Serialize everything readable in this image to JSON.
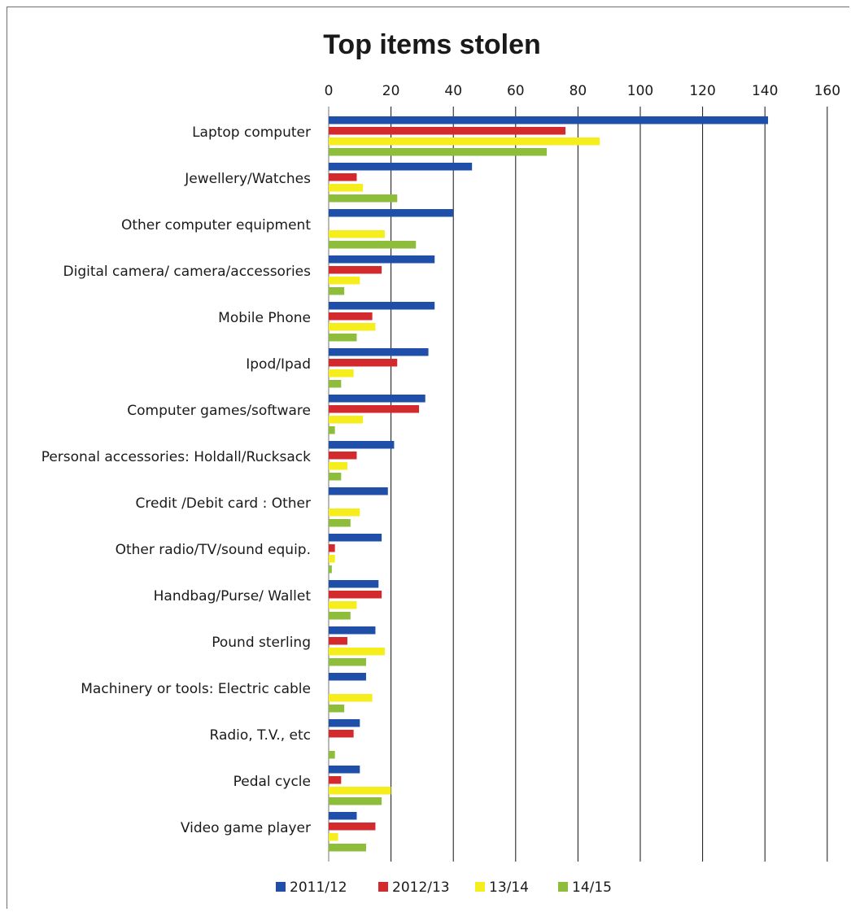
{
  "chart_data": {
    "type": "bar",
    "orientation": "horizontal",
    "title": "Top items stolen",
    "xlim": [
      0,
      160
    ],
    "xticks": [
      "0",
      "20",
      "40",
      "60",
      "80",
      "100",
      "120",
      "140",
      "160"
    ],
    "axis_position": "top",
    "grid": "vertical",
    "legend_position": "bottom",
    "categories": [
      "Laptop computer",
      "Jewellery/Watches",
      "Other computer equipment",
      "Digital camera/ camera/accessories",
      "Mobile Phone",
      "Ipod/Ipad",
      "Computer games/software",
      "Personal accessories: Holdall/Rucksack",
      "Credit /Debit card : Other",
      "Other radio/TV/sound equip.",
      "Handbag/Purse/ Wallet",
      "Pound sterling",
      "Machinery or tools: Electric cable",
      "Radio, T.V., etc",
      "Pedal cycle",
      "Video game player"
    ],
    "series": [
      {
        "name": "2011/12",
        "color": "#1f4fa8",
        "values": [
          141,
          46,
          40,
          34,
          34,
          32,
          31,
          21,
          19,
          17,
          16,
          15,
          12,
          10,
          10,
          9
        ]
      },
      {
        "name": "2012/13",
        "color": "#d32a2e",
        "values": [
          76,
          9,
          0,
          17,
          14,
          22,
          29,
          9,
          0,
          2,
          17,
          6,
          0,
          8,
          4,
          15
        ]
      },
      {
        "name": "13/14",
        "color": "#f5ee1c",
        "values": [
          87,
          11,
          18,
          10,
          15,
          8,
          11,
          6,
          10,
          2,
          9,
          18,
          14,
          0,
          20,
          3
        ]
      },
      {
        "name": "14/15",
        "color": "#8dbd3b",
        "values": [
          70,
          22,
          28,
          5,
          9,
          4,
          2,
          4,
          7,
          1,
          7,
          12,
          5,
          2,
          17,
          12
        ]
      }
    ]
  }
}
